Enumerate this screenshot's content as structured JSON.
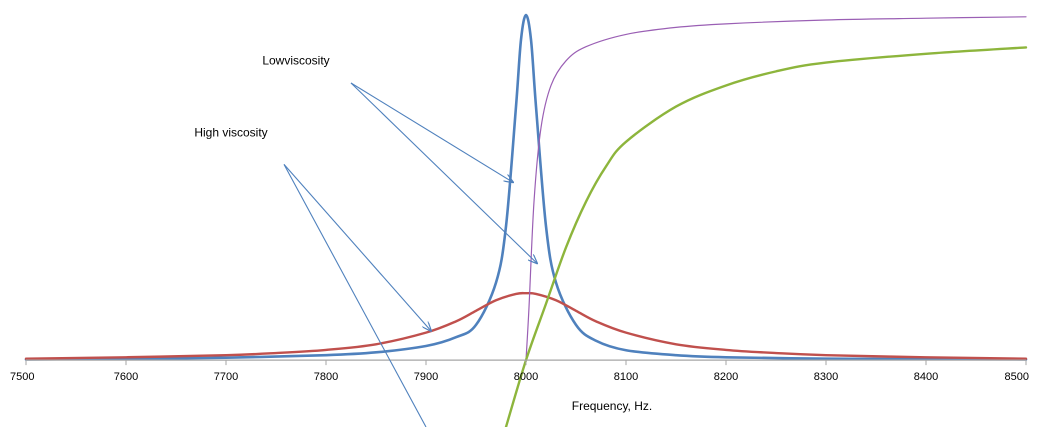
{
  "chart_data": {
    "type": "line",
    "title": "",
    "xlabel": "Frequency, Hz.",
    "ylabel": "",
    "xlim": [
      7500,
      8500
    ],
    "ylim": [
      -0.19,
      1.0
    ],
    "x_ticks": [
      "7500",
      "7600",
      "7700",
      "7800",
      "7900",
      "8000",
      "8100",
      "8200",
      "8300",
      "8400",
      "8500"
    ],
    "grid": false,
    "legend": "none",
    "colors": {
      "low_amplitude": "#4f81bd",
      "high_amplitude": "#c0504d",
      "low_phase": "#9a5fb4",
      "high_phase": "#8db53c",
      "axis": "#a6a6a6",
      "arrow": "#4f81bd"
    },
    "series": [
      {
        "x": [
          7500,
          7600,
          7700,
          7800,
          7850,
          7900,
          7930,
          7950,
          7970,
          7980,
          7990,
          7995,
          8000,
          8005,
          8010,
          8020,
          8030,
          8050,
          8070,
          8100,
          8150,
          8200,
          8300,
          8400,
          8500
        ],
        "values": [
          0.002,
          0.004,
          0.007,
          0.014,
          0.022,
          0.04,
          0.065,
          0.1,
          0.22,
          0.38,
          0.72,
          0.91,
          0.98,
          0.91,
          0.72,
          0.38,
          0.22,
          0.1,
          0.055,
          0.028,
          0.014,
          0.008,
          0.004,
          0.003,
          0.002
        ]
      },
      {
        "x": [
          7500,
          7600,
          7700,
          7750,
          7800,
          7850,
          7900,
          7930,
          7950,
          7970,
          7990,
          8000,
          8010,
          8030,
          8050,
          8070,
          8100,
          8150,
          8200,
          8250,
          8300,
          8400,
          8500
        ],
        "values": [
          0.004,
          0.008,
          0.014,
          0.02,
          0.029,
          0.045,
          0.078,
          0.11,
          0.14,
          0.17,
          0.188,
          0.19,
          0.188,
          0.17,
          0.14,
          0.11,
          0.078,
          0.045,
          0.029,
          0.02,
          0.014,
          0.008,
          0.004
        ]
      },
      {
        "x": [
          8000,
          8003,
          8008,
          8015,
          8025,
          8040,
          8060,
          8100,
          8150,
          8200,
          8300,
          8400,
          8500
        ],
        "values": [
          0.0,
          0.15,
          0.45,
          0.66,
          0.78,
          0.85,
          0.89,
          0.925,
          0.945,
          0.955,
          0.966,
          0.971,
          0.975
        ]
      },
      {
        "x": [
          7980,
          8000,
          8020,
          8040,
          8060,
          8080,
          8100,
          8150,
          8200,
          8250,
          8300,
          8400,
          8500
        ],
        "values": [
          -0.19,
          0.0,
          0.16,
          0.32,
          0.45,
          0.55,
          0.62,
          0.72,
          0.78,
          0.82,
          0.845,
          0.87,
          0.888
        ]
      }
    ],
    "annotations": [
      {
        "text": "Lowviscosity",
        "label_at": [
          7770,
          0.84
        ],
        "arrows_from": [
          7825,
          0.787
        ],
        "arrows_to": [
          [
            7987,
            0.505
          ],
          [
            8011,
            0.275
          ]
        ]
      },
      {
        "text": "High viscosity",
        "label_at": [
          7705,
          0.635
        ],
        "arrows_from": [
          7758,
          0.556
        ],
        "arrows_to": [
          [
            7905,
            0.083
          ],
          [
            7900,
            -0.19
          ]
        ]
      }
    ]
  }
}
